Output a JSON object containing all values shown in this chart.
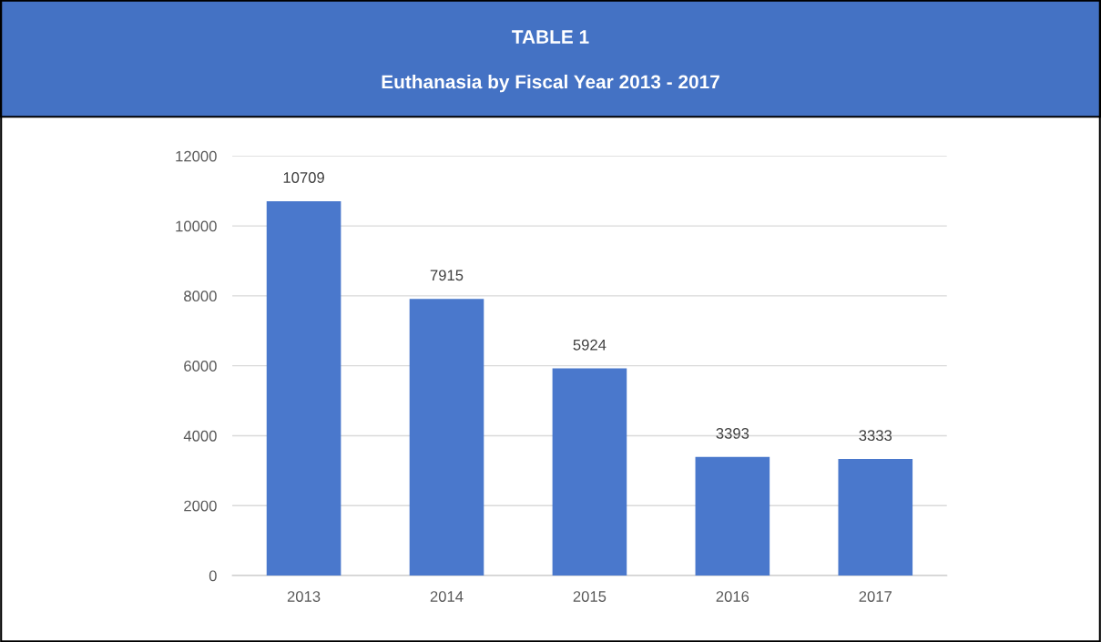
{
  "chart_data": {
    "type": "bar",
    "title": "TABLE 1",
    "subtitle": "Euthanasia by Fiscal Year 2013 - 2017",
    "categories": [
      "2013",
      "2014",
      "2015",
      "2016",
      "2017"
    ],
    "values": [
      10709,
      7915,
      5924,
      3393,
      3333
    ],
    "color": "#4a78cc",
    "ylim": [
      0,
      12000
    ],
    "yticks": [
      0,
      2000,
      4000,
      6000,
      8000,
      10000,
      12000
    ],
    "grid": "y",
    "data_labels": true
  }
}
